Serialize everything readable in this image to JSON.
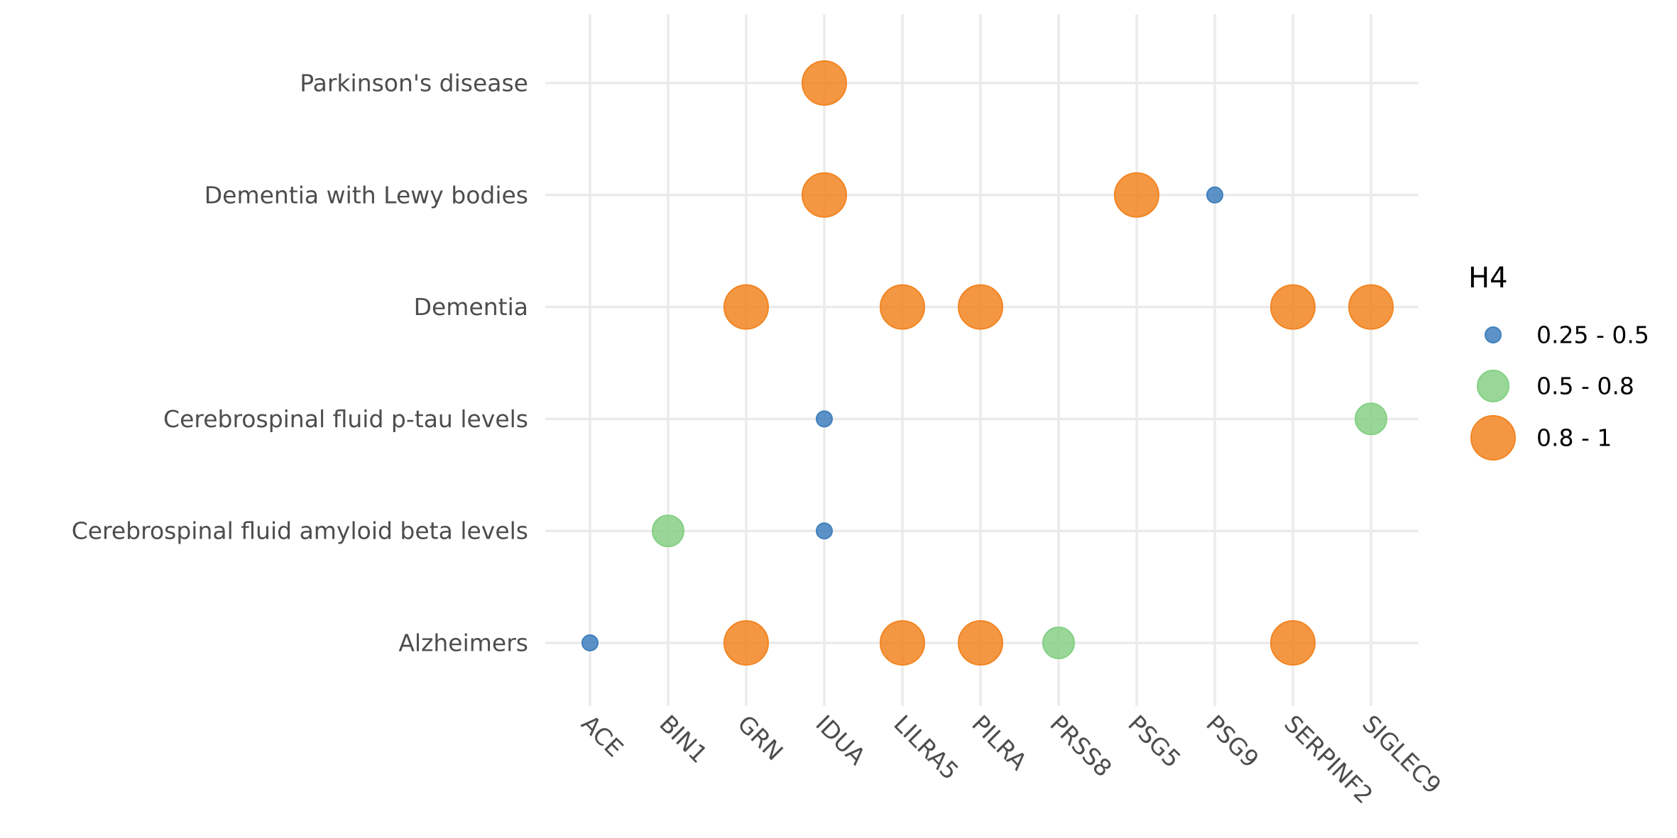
{
  "chart_data": {
    "type": "scatter",
    "title": "",
    "xlabel": "",
    "ylabel": "",
    "x_categories": [
      "ACE",
      "BIN1",
      "GRN",
      "IDUA",
      "LILRA5",
      "PILRA",
      "PRSS8",
      "PSG5",
      "PSG9",
      "SERPINF2",
      "SIGLEC9"
    ],
    "y_categories": [
      "Alzheimers",
      "Cerebrospinal fluid amyloid beta levels",
      "Cerebrospinal fluid p-tau levels",
      "Dementia",
      "Dementia with Lewy bodies",
      "Parkinson's disease"
    ],
    "grid": true,
    "legend": {
      "title": "H4",
      "position": "right",
      "entries": [
        {
          "label": "0.25 - 0.5",
          "color": "#3f7fbd",
          "size_rank": 1
        },
        {
          "label": "0.5 - 0.8",
          "color": "#86d086",
          "size_rank": 2
        },
        {
          "label": "0.8 - 1",
          "color": "#f28522",
          "size_rank": 3
        }
      ]
    },
    "points": [
      {
        "x": "IDUA",
        "y": "Parkinson's disease",
        "h4": "0.8 - 1"
      },
      {
        "x": "IDUA",
        "y": "Dementia with Lewy bodies",
        "h4": "0.8 - 1"
      },
      {
        "x": "PSG5",
        "y": "Dementia with Lewy bodies",
        "h4": "0.8 - 1"
      },
      {
        "x": "PSG9",
        "y": "Dementia with Lewy bodies",
        "h4": "0.25 - 0.5"
      },
      {
        "x": "GRN",
        "y": "Dementia",
        "h4": "0.8 - 1"
      },
      {
        "x": "LILRA5",
        "y": "Dementia",
        "h4": "0.8 - 1"
      },
      {
        "x": "PILRA",
        "y": "Dementia",
        "h4": "0.8 - 1"
      },
      {
        "x": "SERPINF2",
        "y": "Dementia",
        "h4": "0.8 - 1"
      },
      {
        "x": "SIGLEC9",
        "y": "Dementia",
        "h4": "0.8 - 1"
      },
      {
        "x": "IDUA",
        "y": "Cerebrospinal fluid p-tau levels",
        "h4": "0.25 - 0.5"
      },
      {
        "x": "SIGLEC9",
        "y": "Cerebrospinal fluid p-tau levels",
        "h4": "0.5 - 0.8"
      },
      {
        "x": "BIN1",
        "y": "Cerebrospinal fluid amyloid beta levels",
        "h4": "0.5 - 0.8"
      },
      {
        "x": "IDUA",
        "y": "Cerebrospinal fluid amyloid beta levels",
        "h4": "0.25 - 0.5"
      },
      {
        "x": "ACE",
        "y": "Alzheimers",
        "h4": "0.25 - 0.5"
      },
      {
        "x": "GRN",
        "y": "Alzheimers",
        "h4": "0.8 - 1"
      },
      {
        "x": "LILRA5",
        "y": "Alzheimers",
        "h4": "0.8 - 1"
      },
      {
        "x": "PILRA",
        "y": "Alzheimers",
        "h4": "0.8 - 1"
      },
      {
        "x": "PRSS8",
        "y": "Alzheimers",
        "h4": "0.5 - 0.8"
      },
      {
        "x": "SERPINF2",
        "y": "Alzheimers",
        "h4": "0.8 - 1"
      }
    ]
  }
}
